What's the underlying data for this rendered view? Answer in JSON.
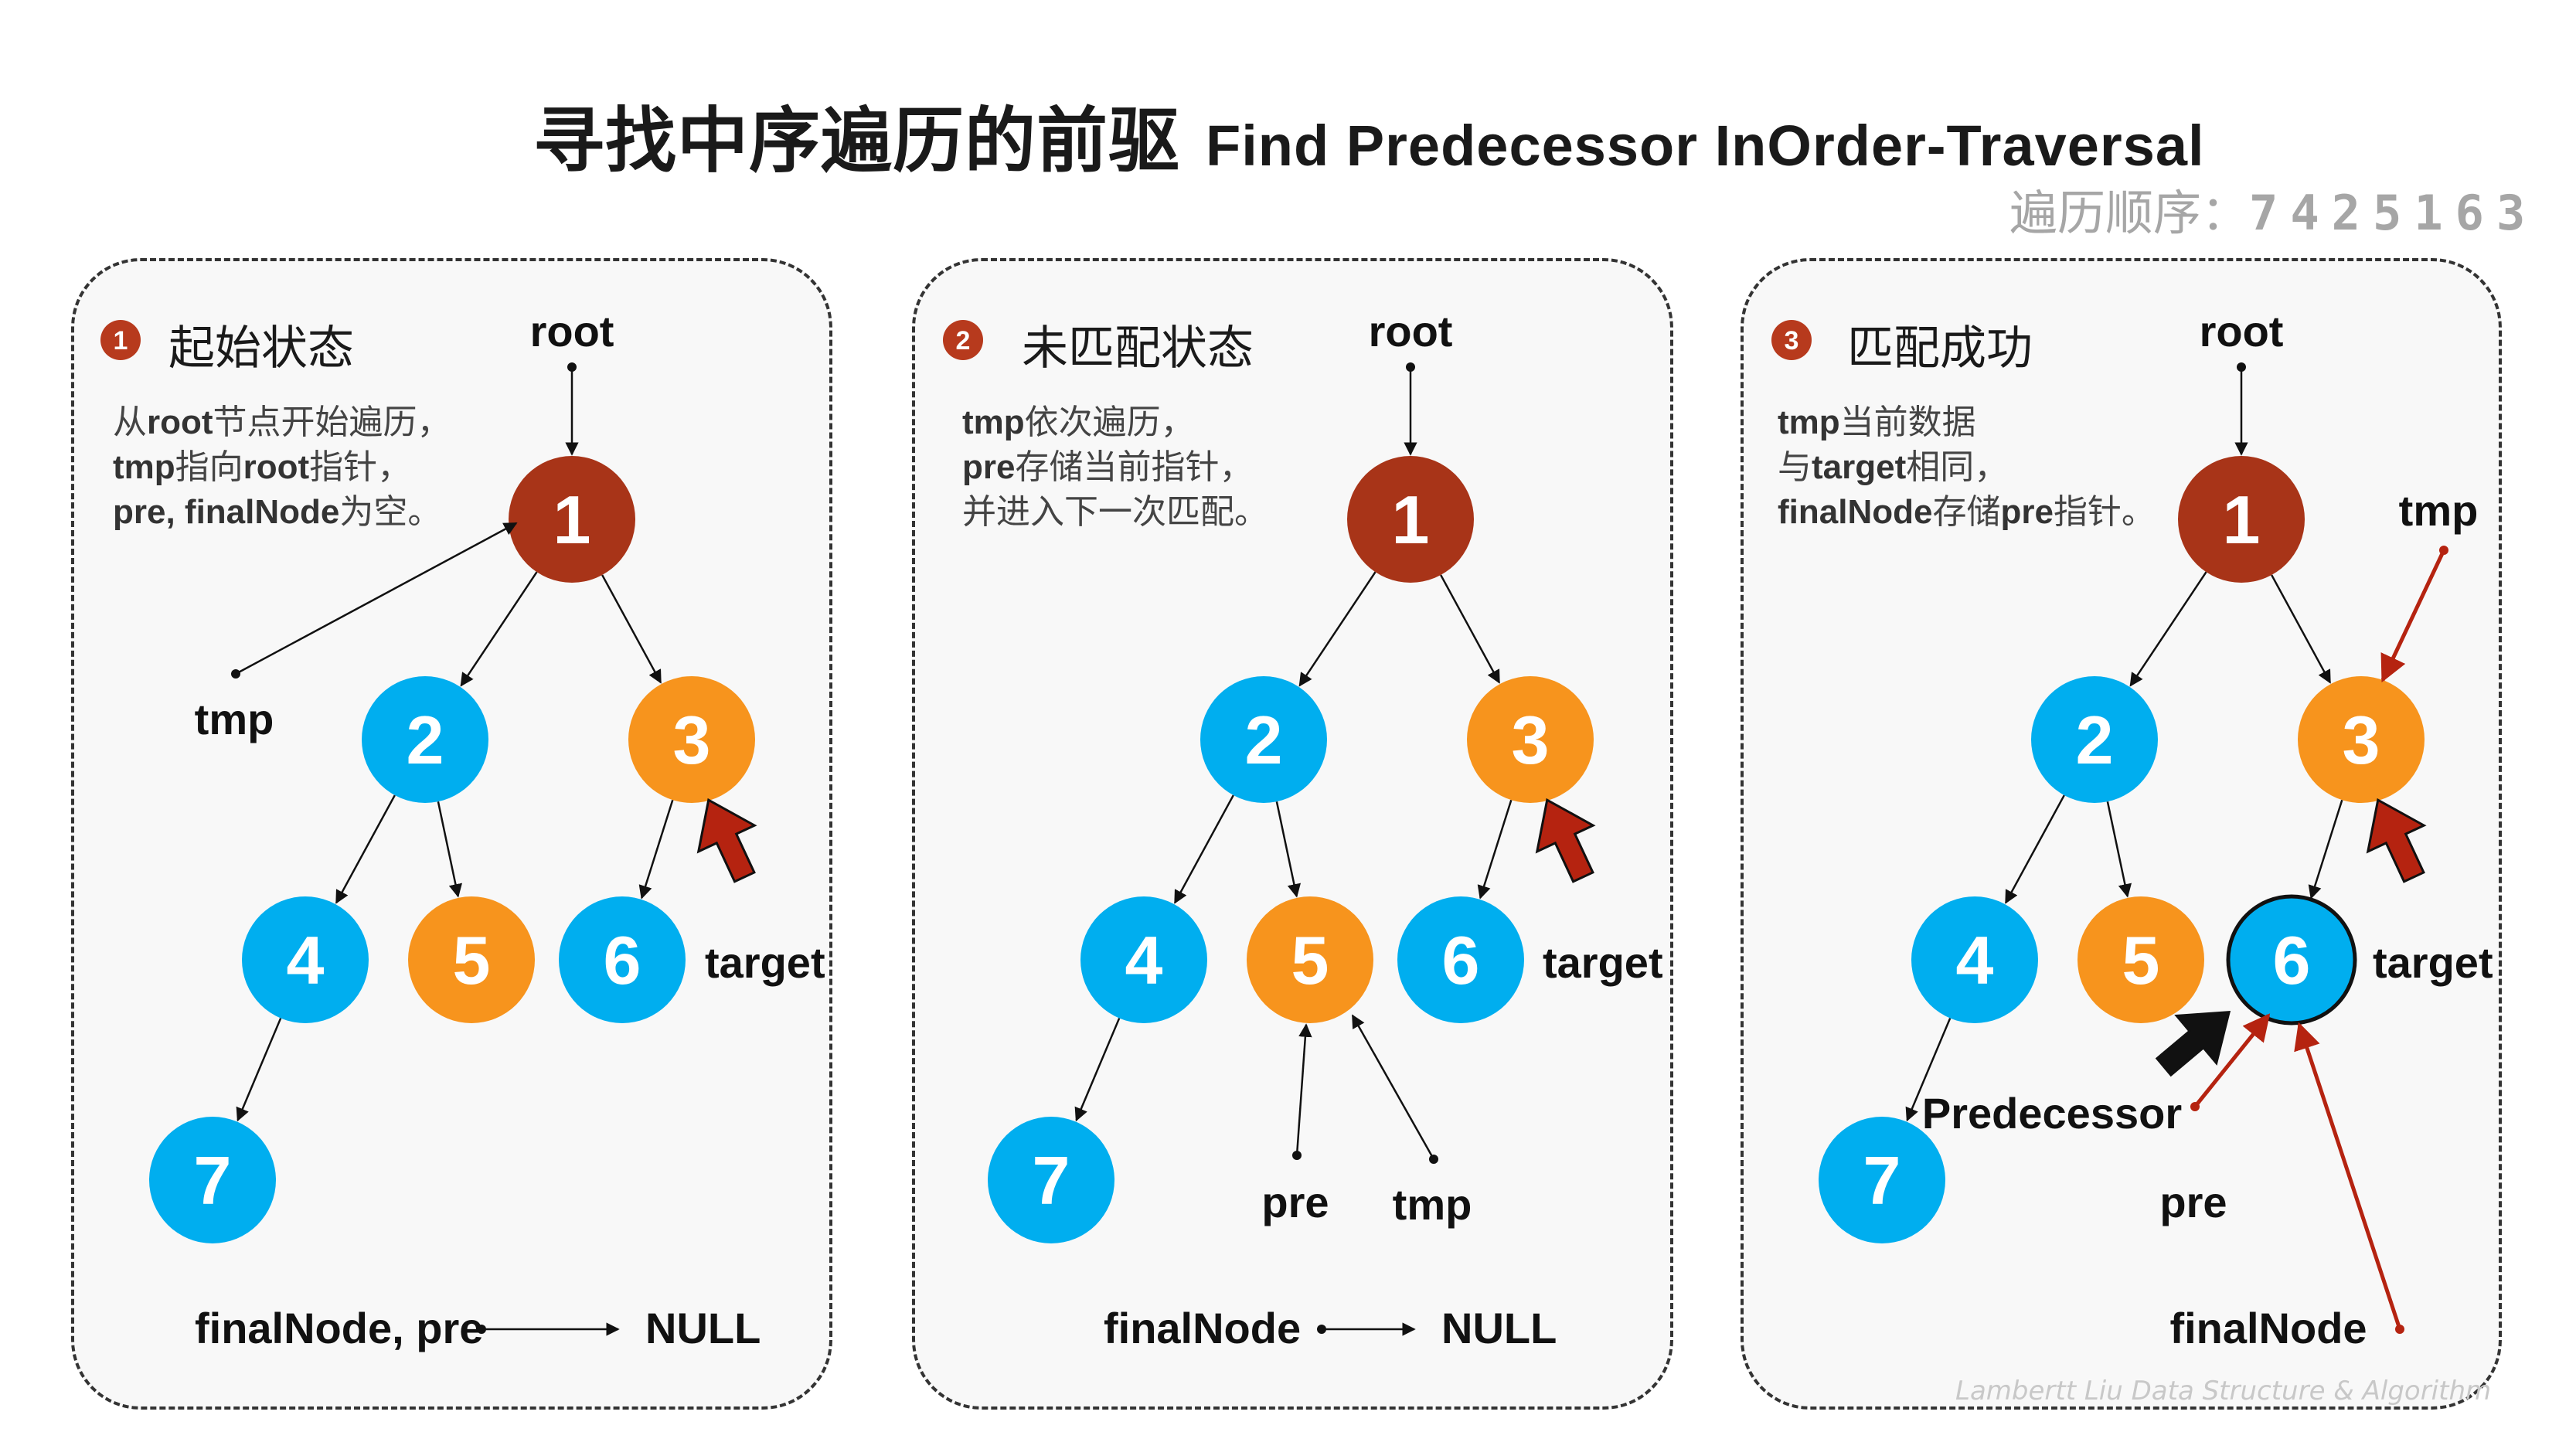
{
  "title": {
    "cn": "寻找中序遍历的前驱",
    "en": "Find Predecessor InOrder-Traversal"
  },
  "traversal": {
    "label": "遍历顺序：",
    "sequence": "7425163"
  },
  "colors": {
    "root_node": "#a83418",
    "blue_node": "#00aeef",
    "orange_node": "#f7941d",
    "red_arrow": "#b52310",
    "badge": "#b73a1d"
  },
  "panels": [
    {
      "badge": "1",
      "title": "起始状态",
      "desc": [
        {
          "a": "从",
          "b": "root",
          "c": "节点开始遍历，"
        },
        {
          "a": "",
          "b": "tmp",
          "c": "指向"
        },
        {
          "a": "",
          "b": "pre, finalNode",
          "c": "为空。"
        }
      ],
      "desc_line2_extra": {
        "b": "root",
        "c": "指针，"
      }
    },
    {
      "badge": "2",
      "title": "未匹配状态",
      "desc": [
        {
          "a": "",
          "b": "tmp",
          "c": "依次遍历，"
        },
        {
          "a": " ",
          "b": "pre",
          "c": "存储当前指针，"
        },
        {
          "a": "并进入下一次匹配。",
          "b": "",
          "c": ""
        }
      ]
    },
    {
      "badge": "3",
      "title": "匹配成功",
      "desc": [
        {
          "a": "",
          "b": "tmp",
          "c": "当前数据"
        },
        {
          "a": "与",
          "b": "target",
          "c": "相同，"
        },
        {
          "a": "",
          "b": "finalNode",
          "c": "存储"
        }
      ],
      "desc_line3_extra": {
        "b": "pre",
        "c": "指针。"
      }
    }
  ],
  "tree": {
    "nodes": [
      {
        "id": "1",
        "label": "1",
        "color": "root"
      },
      {
        "id": "2",
        "label": "2",
        "color": "blue"
      },
      {
        "id": "3",
        "label": "3",
        "color": "orange"
      },
      {
        "id": "4",
        "label": "4",
        "color": "blue"
      },
      {
        "id": "5",
        "label": "5",
        "color": "orange"
      },
      {
        "id": "6",
        "label": "6",
        "color": "blue"
      },
      {
        "id": "7",
        "label": "7",
        "color": "blue"
      }
    ],
    "edges": [
      [
        "1",
        "2"
      ],
      [
        "1",
        "3"
      ],
      [
        "2",
        "4"
      ],
      [
        "2",
        "5"
      ],
      [
        "3",
        "6"
      ],
      [
        "4",
        "7"
      ]
    ]
  },
  "labels": {
    "root": "root",
    "tmp": "tmp",
    "pre": "pre",
    "target": "target",
    "finalNode": "finalNode",
    "finalNode_pre": "finalNode,  pre",
    "null": "NULL",
    "predecessor": "Predecessor"
  },
  "footer": "Lambertt Liu    Data Structure & Algorithm"
}
